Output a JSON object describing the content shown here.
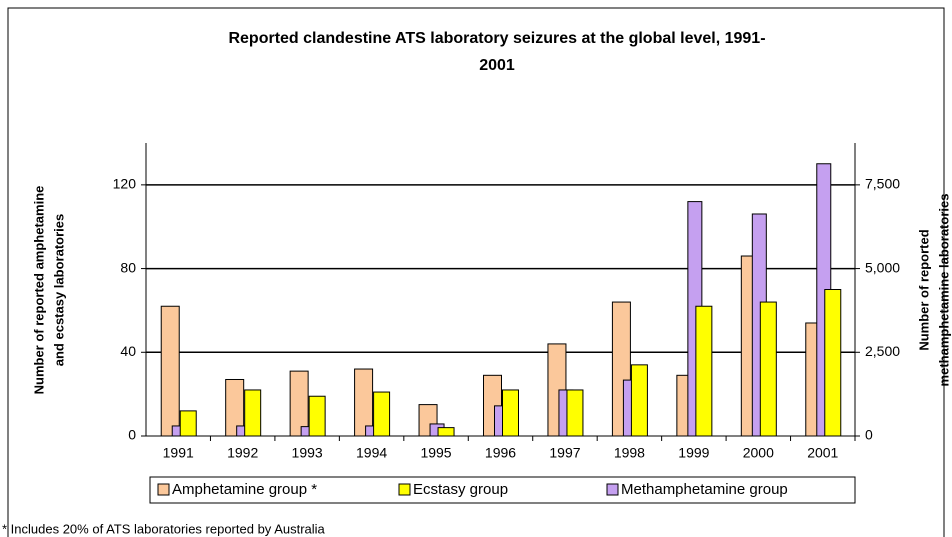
{
  "chart_data": {
    "type": "bar",
    "title": [
      "Reported clandestine ATS laboratory seizures at the global level, 1991-",
      "2001"
    ],
    "ylabel": [
      "Number of reported amphetamine",
      "and ecstasy laboratories"
    ],
    "y2label": [
      "Number of reported",
      "methamphetamine laboratories"
    ],
    "categories": [
      "1991",
      "1992",
      "1993",
      "1994",
      "1995",
      "1996",
      "1997",
      "1998",
      "1999",
      "2000",
      "2001"
    ],
    "series": [
      {
        "name": "Amphetamine group *",
        "color": "#fbc89b",
        "values": [
          62,
          27,
          31,
          32,
          15,
          29,
          44,
          64,
          29,
          86,
          54
        ]
      },
      {
        "name": "Ecstasy group",
        "color": "#ffff00",
        "values": [
          12,
          22,
          19,
          21,
          4,
          22,
          22,
          34,
          62,
          64,
          70
        ]
      },
      {
        "name": "Methamphetamine group",
        "color": "#c5a0f0",
        "axis": "y2",
        "values": [
          300,
          300,
          280,
          300,
          360,
          900,
          1375,
          1670,
          7000,
          6630,
          8130
        ]
      }
    ],
    "ylim": [
      0,
      140
    ],
    "yticks": [
      0,
      40,
      80,
      120
    ],
    "y2lim": [
      0,
      8750
    ],
    "y2ticks": [
      0,
      {
        "value": 2500,
        "label": "2,500"
      },
      {
        "value": 5000,
        "label": "5,000"
      },
      {
        "value": 7500,
        "label": "7,500"
      }
    ],
    "grid": true,
    "legend": "bottom",
    "footnote": "* Includes 20% of ATS laboratories reported by Australia"
  }
}
